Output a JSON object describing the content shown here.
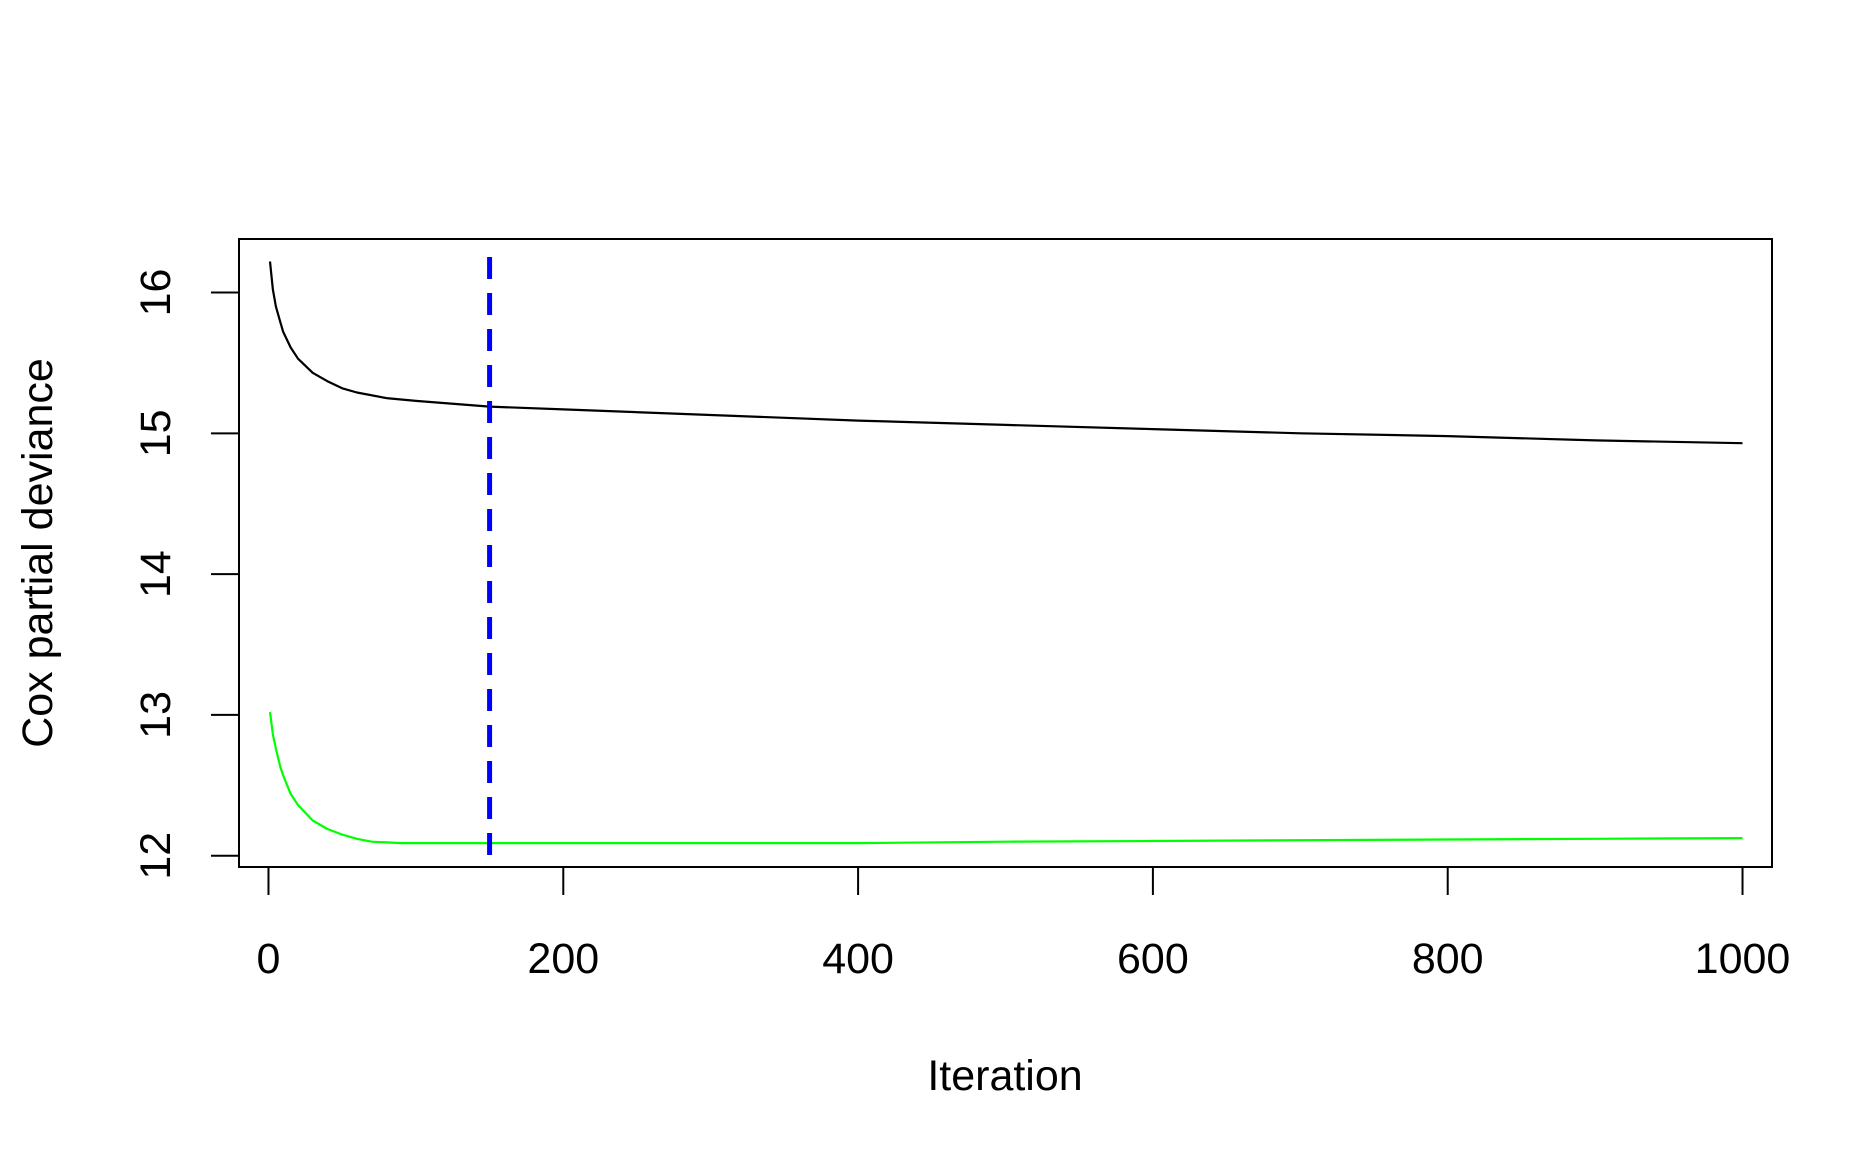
{
  "chart_data": {
    "type": "line",
    "title": "",
    "xlabel": "Iteration",
    "ylabel": "Cox partial deviance",
    "xlim": [
      -20,
      1020
    ],
    "ylim": [
      11.92,
      16.38
    ],
    "xticks": [
      0,
      200,
      400,
      600,
      800,
      1000
    ],
    "yticks": [
      12,
      13,
      14,
      15,
      16
    ],
    "grid": false,
    "series": [
      {
        "color": "#000000",
        "x": [
          1,
          3,
          5,
          8,
          10,
          15,
          20,
          30,
          40,
          50,
          60,
          80,
          100,
          150,
          200,
          300,
          400,
          500,
          600,
          700,
          800,
          900,
          1000
        ],
        "y": [
          16.22,
          16.02,
          15.9,
          15.79,
          15.72,
          15.61,
          15.53,
          15.43,
          15.37,
          15.32,
          15.29,
          15.25,
          15.23,
          15.19,
          15.17,
          15.13,
          15.09,
          15.06,
          15.03,
          15.0,
          14.98,
          14.95,
          14.93
        ]
      },
      {
        "color": "#00ff00",
        "x": [
          1,
          3,
          5,
          8,
          10,
          15,
          20,
          30,
          40,
          50,
          60,
          70,
          80,
          90,
          100,
          150,
          200,
          300,
          400,
          500,
          600,
          700,
          800,
          900,
          1000
        ],
        "y": [
          13.02,
          12.86,
          12.76,
          12.63,
          12.57,
          12.44,
          12.36,
          12.25,
          12.19,
          12.15,
          12.12,
          12.1,
          12.095,
          12.09,
          12.09,
          12.09,
          12.09,
          12.09,
          12.09,
          12.1,
          12.105,
          12.11,
          12.115,
          12.12,
          12.125
        ]
      }
    ],
    "vline": {
      "x": 150,
      "color": "#0000ff",
      "style": "dashed"
    }
  }
}
